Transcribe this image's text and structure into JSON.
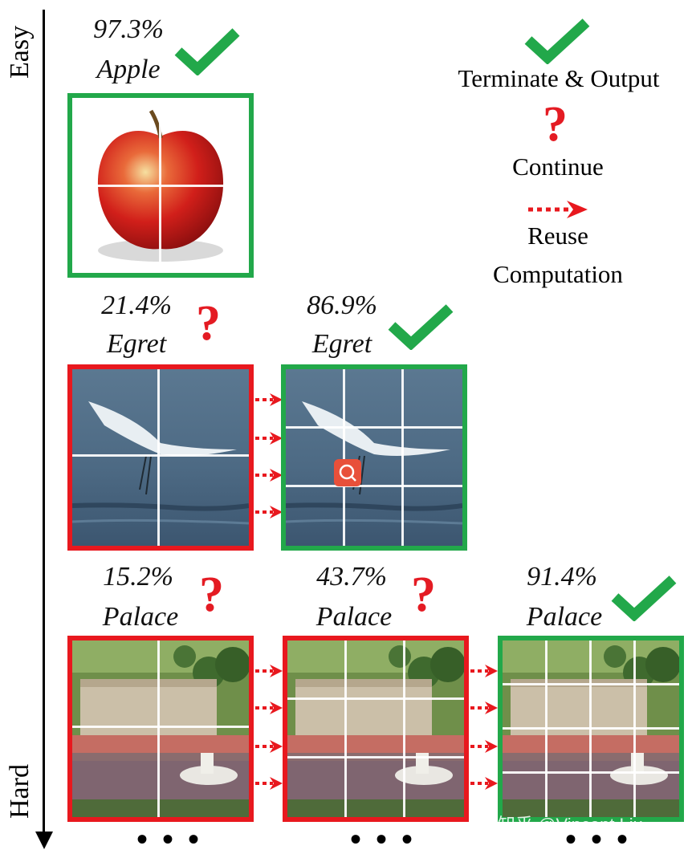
{
  "axis": {
    "top_label": "Easy",
    "bottom_label": "Hard"
  },
  "legend": {
    "terminate": "Terminate & Output",
    "continue": "Continue",
    "reuse_line1": "Reuse",
    "reuse_line2": "Computation"
  },
  "rows": [
    {
      "steps": [
        {
          "confidence": "97.3%",
          "label": "Apple",
          "decision": "terminate",
          "grid": "2x2"
        }
      ]
    },
    {
      "steps": [
        {
          "confidence": "21.4%",
          "label": "Egret",
          "decision": "continue",
          "grid": "3x3"
        },
        {
          "confidence": "86.9%",
          "label": "Egret",
          "decision": "terminate",
          "grid": "3x3"
        }
      ]
    },
    {
      "steps": [
        {
          "confidence": "15.2%",
          "label": "Palace",
          "decision": "continue",
          "grid": "3x3"
        },
        {
          "confidence": "43.7%",
          "label": "Palace",
          "decision": "continue",
          "grid": "4x4"
        },
        {
          "confidence": "91.4%",
          "label": "Palace",
          "decision": "terminate",
          "grid": "4x4"
        }
      ]
    }
  ],
  "ellipsis": "• • •",
  "watermark": "知乎 @Vincent Liu",
  "colors": {
    "green": "#22a84a",
    "red": "#e8181e"
  }
}
